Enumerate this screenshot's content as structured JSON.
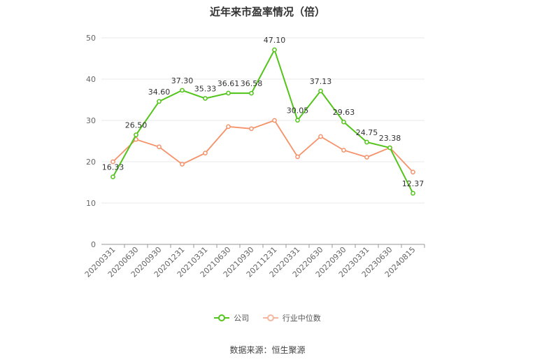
{
  "colors": {
    "company": "#52c41a",
    "industry": "#f5926a",
    "grid": "#e8e8e8",
    "axis": "#999999",
    "text": "#666666"
  },
  "footer": {
    "source": "数据来源：恒生聚源"
  },
  "chart_data": {
    "type": "line",
    "title": "近年来市盈率情况（倍）",
    "xlabel": "",
    "ylabel": "",
    "ylim": [
      0,
      50
    ],
    "yticks": [
      0,
      10,
      20,
      30,
      40,
      50
    ],
    "grid": true,
    "legend_position": "bottom",
    "categories": [
      "20200331",
      "20200630",
      "20200930",
      "20201231",
      "20210331",
      "20210630",
      "20210930",
      "20211231",
      "20220331",
      "20220630",
      "20220930",
      "20230331",
      "20230630",
      "20240815"
    ],
    "series": [
      {
        "name": "公司",
        "color": "#52c41a",
        "values": [
          16.33,
          26.5,
          34.6,
          37.3,
          35.33,
          36.61,
          36.58,
          47.1,
          30.05,
          37.13,
          29.63,
          24.75,
          23.38,
          12.37
        ],
        "labels": [
          "16.33",
          "26.50",
          "34.60",
          "37.30",
          "35.33",
          "36.61",
          "36.58",
          "47.10",
          "30.05",
          "37.13",
          "29.63",
          "24.75",
          "23.38",
          "12.37"
        ]
      },
      {
        "name": "行业中位数",
        "color": "#f5926a",
        "values": [
          20.0,
          25.4,
          23.6,
          19.4,
          22.1,
          28.5,
          28.0,
          30.0,
          21.2,
          26.1,
          22.8,
          21.1,
          23.4,
          17.5
        ]
      }
    ]
  }
}
